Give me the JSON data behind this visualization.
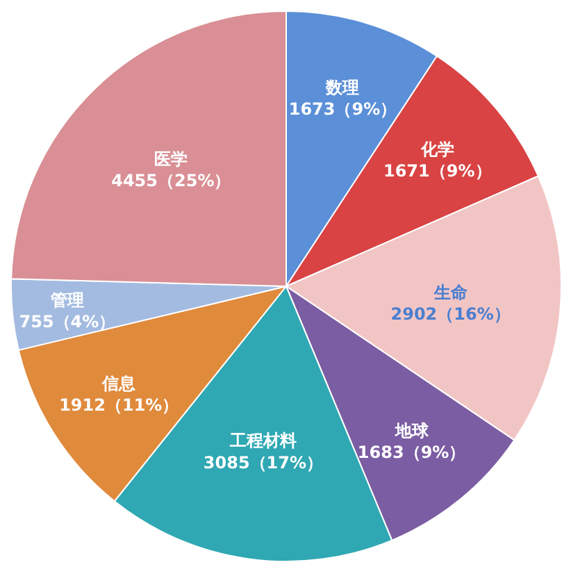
{
  "chart_data": {
    "type": "pie",
    "categories": [
      "数理",
      "化学",
      "生命",
      "地球",
      "工程材料",
      "信息",
      "管理",
      "医学"
    ],
    "values": [
      1673,
      1671,
      2902,
      1683,
      3085,
      1912,
      755,
      4455
    ],
    "value_labels": [
      "1673（9%）",
      "1671（9%）",
      "2902（16%）",
      "1683（9%）",
      "3085（17%）",
      "1912（11%）",
      "755（4%）",
      "4455（25%）"
    ],
    "colors": [
      "#5b8fd8",
      "#d94343",
      "#f2c5c5",
      "#7b5da3",
      "#2fa8b3",
      "#e08a3c",
      "#a3bbe0",
      "#d98f95"
    ]
  }
}
